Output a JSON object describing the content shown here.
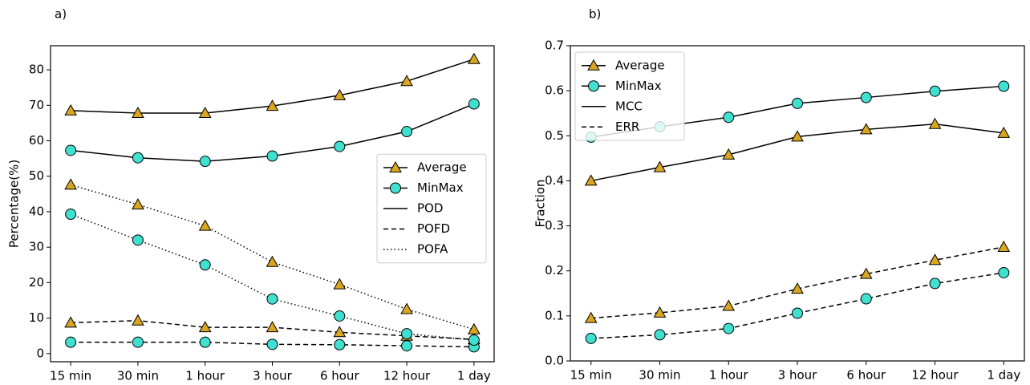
{
  "chart_data": [
    {
      "type": "line",
      "panel_label": "a)",
      "y_label": "Percentage(%)",
      "categories": [
        "15 min",
        "30 min",
        "1 hour",
        "3 hour",
        "6 hour",
        "12 hour",
        "1 day"
      ],
      "ylim": [
        -2.3,
        86.8
      ],
      "yticks": [
        0,
        10,
        20,
        30,
        40,
        50,
        60,
        70,
        80
      ],
      "legend": "center right",
      "legend_entries": [
        {
          "label": "Average",
          "marker": "triangle",
          "marker_color": "#daa520"
        },
        {
          "label": "MinMax",
          "marker": "circle",
          "marker_color": "#40e0d0"
        },
        {
          "label": "POD",
          "dash": "solid"
        },
        {
          "label": "POFD",
          "dash": "dashed"
        },
        {
          "label": "POFA",
          "dash": "dotted"
        }
      ],
      "series": [
        {
          "marker": "triangle",
          "marker_color": "#daa520",
          "dash": "solid",
          "color": "#000000",
          "values": [
            68.5,
            67.8,
            67.8,
            69.8,
            72.8,
            76.8,
            83
          ]
        },
        {
          "marker": "circle",
          "marker_color": "#40e0d0",
          "dash": "solid",
          "color": "#000000",
          "values": [
            57.3,
            55.2,
            54.2,
            55.7,
            58.4,
            62.6,
            70.4
          ]
        },
        {
          "marker": "triangle",
          "marker_color": "#daa520",
          "dash": "dashed",
          "color": "#000000",
          "values": [
            8.7,
            9.3,
            7.4,
            7.4,
            6,
            5,
            4
          ]
        },
        {
          "marker": "circle",
          "marker_color": "#40e0d0",
          "dash": "dashed",
          "color": "#000000",
          "values": [
            3.2,
            3.2,
            3.2,
            2.6,
            2.5,
            2.2,
            1.9
          ]
        },
        {
          "marker": "triangle",
          "marker_color": "#daa520",
          "dash": "dotted",
          "color": "#000000",
          "values": [
            47.6,
            42,
            36,
            25.8,
            19.5,
            12.5,
            6.8
          ]
        },
        {
          "marker": "circle",
          "marker_color": "#40e0d0",
          "dash": "dotted",
          "color": "#000000",
          "values": [
            39.3,
            32,
            25,
            15.4,
            10.6,
            5.6,
            3.8
          ]
        }
      ]
    },
    {
      "type": "line",
      "panel_label": "b)",
      "y_label": "Fraction",
      "categories": [
        "15 min",
        "30 min",
        "1 hour",
        "3 hour",
        "6 hour",
        "12 hour",
        "1 day"
      ],
      "ylim": [
        0,
        0.7
      ],
      "yticks": [
        {
          "value": 0,
          "label": "0.0"
        },
        0.1,
        0.2,
        0.3,
        0.4,
        0.5,
        0.6,
        0.7
      ],
      "legend": "upper left",
      "legend_entries": [
        {
          "label": "Average",
          "marker": "triangle",
          "marker_color": "#daa520"
        },
        {
          "label": "MinMax",
          "marker": "circle",
          "marker_color": "#40e0d0"
        },
        {
          "label": "MCC",
          "dash": "solid"
        },
        {
          "label": "ERR",
          "dash": "dashed"
        }
      ],
      "series": [
        {
          "marker": "triangle",
          "marker_color": "#daa520",
          "dash": "solid",
          "color": "#000000",
          "values": [
            0.4,
            0.43,
            0.458,
            0.498,
            0.514,
            0.526,
            0.506
          ]
        },
        {
          "marker": "circle",
          "marker_color": "#40e0d0",
          "dash": "solid",
          "color": "#000000",
          "values": [
            0.497,
            0.52,
            0.541,
            0.572,
            0.585,
            0.599,
            0.61
          ]
        },
        {
          "marker": "triangle",
          "marker_color": "#daa520",
          "dash": "dashed",
          "color": "#000000",
          "values": [
            0.095,
            0.107,
            0.122,
            0.16,
            0.193,
            0.224,
            0.253
          ]
        },
        {
          "marker": "circle",
          "marker_color": "#40e0d0",
          "dash": "dashed",
          "color": "#000000",
          "values": [
            0.05,
            0.058,
            0.072,
            0.106,
            0.138,
            0.172,
            0.196
          ]
        }
      ]
    }
  ]
}
